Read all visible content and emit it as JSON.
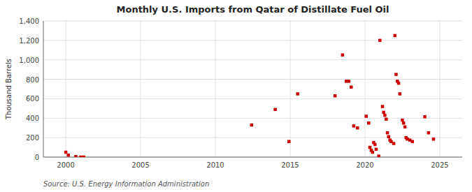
{
  "chart_data": {
    "type": "scatter",
    "title": "Monthly U.S. Imports from Qatar of Distillate Fuel Oil",
    "y_label": "Thousand Barrels",
    "annotations": [
      "Source: U.S. Energy Information Administration"
    ],
    "color": "#cc0000",
    "marker": "square",
    "grid": true,
    "xlim": [
      1998.5,
      2026.5
    ],
    "ylim": [
      0,
      1400
    ],
    "xticks": [
      2000,
      2005,
      2010,
      2015,
      2020,
      2025
    ],
    "yticks": [
      0,
      200,
      400,
      600,
      800,
      {
        "value": 1000,
        "label": "1,000"
      },
      {
        "value": 1200,
        "label": "1,200"
      },
      {
        "value": 1400,
        "label": "1,400"
      }
    ],
    "x": [
      2000.0,
      2000.17,
      2000.67,
      2001.0,
      2001.2,
      2012.42,
      2014.0,
      2014.92,
      2015.5,
      2018.0,
      2018.5,
      2018.75,
      2018.92,
      2019.08,
      2019.25,
      2019.5,
      2020.08,
      2020.25,
      2020.33,
      2020.42,
      2020.5,
      2020.58,
      2020.67,
      2020.75,
      2020.92,
      2021.0,
      2021.17,
      2021.25,
      2021.33,
      2021.42,
      2021.5,
      2021.58,
      2021.67,
      2021.75,
      2021.92,
      2022.0,
      2022.08,
      2022.17,
      2022.25,
      2022.33,
      2022.5,
      2022.58,
      2022.67,
      2022.75,
      2022.83,
      2023.0,
      2023.17,
      2024.0,
      2024.25,
      2024.58
    ],
    "values": [
      50,
      20,
      5,
      0,
      0,
      330,
      490,
      160,
      650,
      630,
      1050,
      780,
      780,
      720,
      320,
      300,
      420,
      350,
      100,
      70,
      50,
      150,
      130,
      80,
      10,
      1200,
      520,
      460,
      430,
      390,
      250,
      210,
      175,
      160,
      140,
      1250,
      850,
      780,
      760,
      650,
      380,
      350,
      310,
      200,
      185,
      175,
      160,
      415,
      250,
      185
    ]
  }
}
